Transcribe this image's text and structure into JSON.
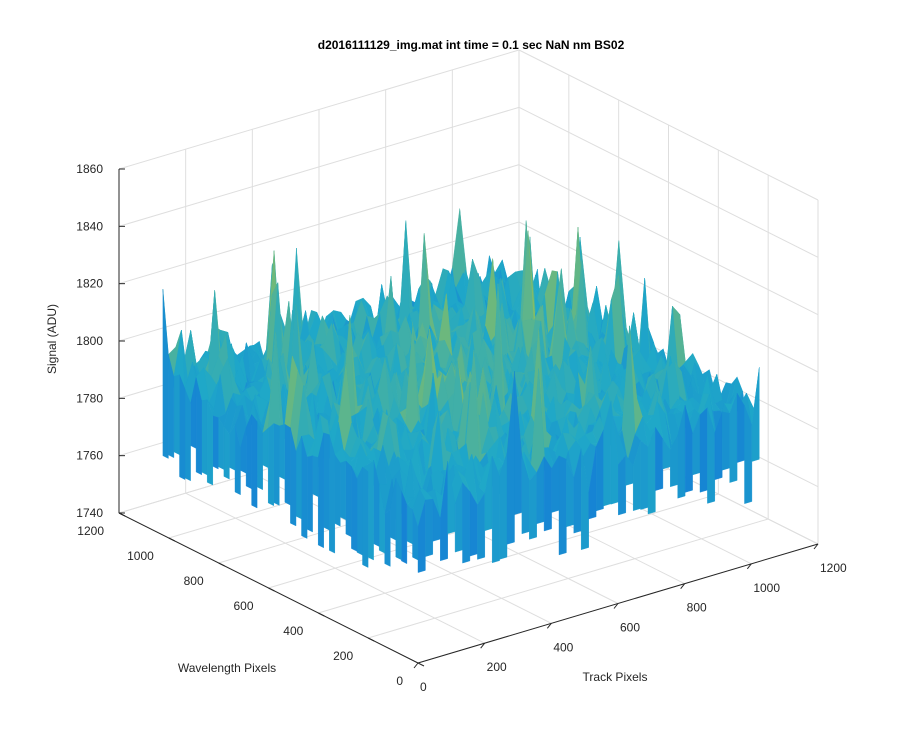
{
  "chart_data": {
    "type": "surface",
    "title": "d2016111129_img.mat int time = 0.1 sec  NaN nm BS02",
    "xlabel": "Track Pixels",
    "ylabel": "Wavelength Pixels",
    "zlabel": "Signal (ADU)",
    "xlim": [
      0,
      1200
    ],
    "ylim": [
      0,
      1200
    ],
    "zlim": [
      1740,
      1860
    ],
    "x_ticks": [
      "0",
      "200",
      "400",
      "600",
      "800",
      "1000",
      "1200"
    ],
    "y_ticks": [
      "0",
      "200",
      "400",
      "600",
      "800",
      "1000",
      "1200"
    ],
    "z_ticks": [
      "1740",
      "1760",
      "1780",
      "1800",
      "1820",
      "1840",
      "1860"
    ],
    "data_extent": {
      "x": [
        0,
        1024
      ],
      "y": [
        0,
        1024
      ]
    },
    "signal_mean": 1795,
    "signal_range": [
      1745,
      1852
    ],
    "grid": true,
    "colormap": "parula",
    "colors": {
      "low": "#0d5ee0",
      "mid": "#1fa8c8",
      "high": "#b9c832"
    }
  }
}
